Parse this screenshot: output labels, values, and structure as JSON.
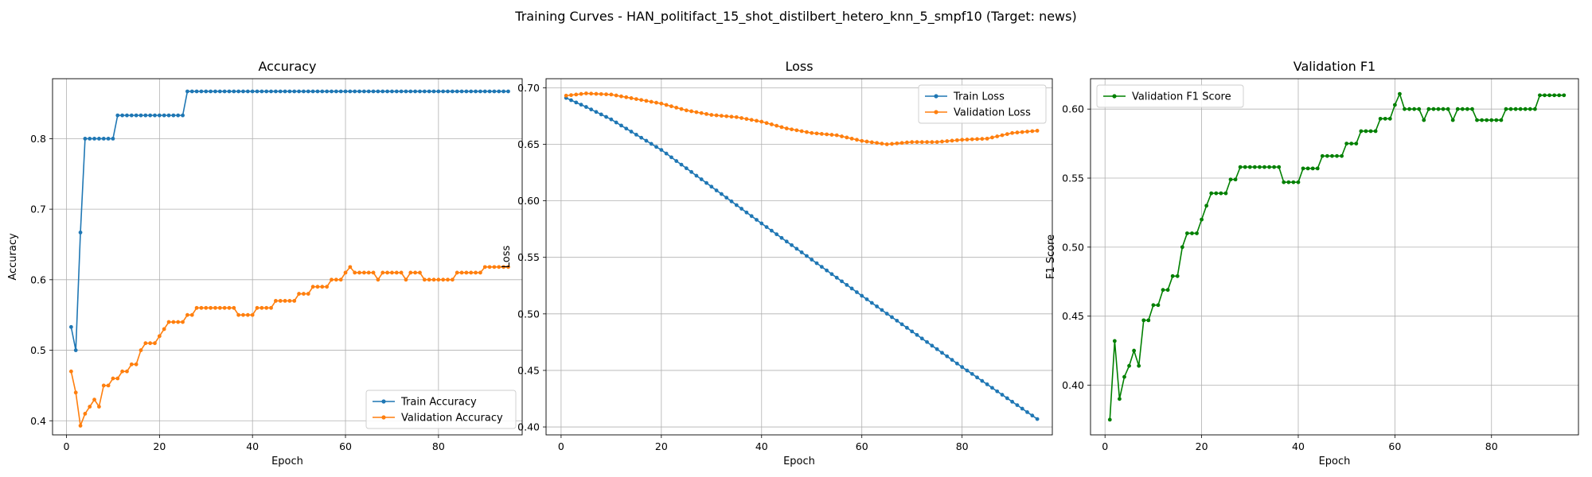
{
  "suptitle": "Training Curves - HAN_politifact_15_shot_distilbert_hetero_knn_5_smpf10 (Target: news)",
  "colors": {
    "blue": "#1f77b4",
    "orange": "#ff7f0e",
    "green": "#008000",
    "grid": "#b0b0b0"
  },
  "chart_data": [
    {
      "type": "line",
      "title": "Accuracy",
      "xlabel": "Epoch",
      "ylabel": "Accuracy",
      "xlim": [
        -3,
        98
      ],
      "ylim": [
        0.38,
        0.885
      ],
      "xticks": [
        0,
        20,
        40,
        60,
        80
      ],
      "yticks": [
        0.4,
        0.5,
        0.6,
        0.7,
        0.8
      ],
      "ytick_labels": [
        "0.4",
        "0.5",
        "0.6",
        "0.7",
        "0.8"
      ],
      "legend_loc": "lower-right",
      "grid": true,
      "series": [
        {
          "name": "Train Accuracy",
          "color": "#1f77b4",
          "segments": [
            [
              1,
              0.533
            ],
            [
              2,
              0.5
            ],
            [
              3,
              0.667
            ],
            [
              4,
              0.8,
              10
            ],
            [
              11,
              0.833,
              25
            ],
            [
              26,
              0.867,
              95
            ]
          ]
        },
        {
          "name": "Validation Accuracy",
          "color": "#ff7f0e",
          "segments": [
            [
              1,
              0.47
            ],
            [
              2,
              0.44
            ],
            [
              3,
              0.393
            ],
            [
              4,
              0.41
            ],
            [
              5,
              0.42
            ],
            [
              6,
              0.43
            ],
            [
              7,
              0.42
            ],
            [
              8,
              0.45,
              9
            ],
            [
              10,
              0.46,
              11
            ],
            [
              12,
              0.47,
              13
            ],
            [
              14,
              0.48,
              15
            ],
            [
              16,
              0.5
            ],
            [
              17,
              0.51,
              19
            ],
            [
              20,
              0.52
            ],
            [
              21,
              0.53
            ],
            [
              22,
              0.54,
              25
            ],
            [
              26,
              0.55,
              27
            ],
            [
              28,
              0.56,
              36
            ],
            [
              37,
              0.55,
              40
            ],
            [
              41,
              0.56,
              44
            ],
            [
              45,
              0.57,
              49
            ],
            [
              50,
              0.58,
              52
            ],
            [
              53,
              0.59,
              56
            ],
            [
              57,
              0.6,
              59
            ],
            [
              60,
              0.61
            ],
            [
              61,
              0.618
            ],
            [
              62,
              0.61,
              66
            ],
            [
              67,
              0.6
            ],
            [
              68,
              0.61,
              72
            ],
            [
              73,
              0.6
            ],
            [
              74,
              0.61,
              76
            ],
            [
              77,
              0.6,
              83
            ],
            [
              84,
              0.61,
              89
            ],
            [
              90,
              0.618,
              95
            ]
          ]
        }
      ]
    },
    {
      "type": "line",
      "title": "Loss",
      "xlabel": "Epoch",
      "ylabel": "Loss",
      "xlim": [
        -3,
        98
      ],
      "ylim": [
        0.393,
        0.708
      ],
      "xticks": [
        0,
        20,
        40,
        60,
        80
      ],
      "yticks": [
        0.4,
        0.45,
        0.5,
        0.55,
        0.6,
        0.65,
        0.7
      ],
      "ytick_labels": [
        "0.40",
        "0.45",
        "0.50",
        "0.55",
        "0.60",
        "0.65",
        "0.70"
      ],
      "legend_loc": "top-right",
      "grid": true,
      "series": [
        {
          "name": "Train Loss",
          "color": "#1f77b4",
          "knots": [
            [
              1,
              0.691
            ],
            [
              5,
              0.683
            ],
            [
              10,
              0.672
            ],
            [
              20,
              0.645
            ],
            [
              40,
              0.58
            ],
            [
              60,
              0.516
            ],
            [
              80,
              0.453
            ],
            [
              95,
              0.407
            ]
          ]
        },
        {
          "name": "Validation Loss",
          "color": "#ff7f0e",
          "knots": [
            [
              1,
              0.693
            ],
            [
              5,
              0.695
            ],
            [
              10,
              0.694
            ],
            [
              15,
              0.69
            ],
            [
              20,
              0.686
            ],
            [
              25,
              0.68
            ],
            [
              30,
              0.676
            ],
            [
              35,
              0.674
            ],
            [
              40,
              0.67
            ],
            [
              45,
              0.664
            ],
            [
              50,
              0.66
            ],
            [
              55,
              0.658
            ],
            [
              60,
              0.653
            ],
            [
              65,
              0.65
            ],
            [
              70,
              0.652
            ],
            [
              75,
              0.652
            ],
            [
              80,
              0.654
            ],
            [
              85,
              0.655
            ],
            [
              90,
              0.66
            ],
            [
              95,
              0.662
            ]
          ]
        }
      ]
    },
    {
      "type": "line",
      "title": "Validation F1",
      "xlabel": "Epoch",
      "ylabel": "F1 Score",
      "xlim": [
        -3,
        98
      ],
      "ylim": [
        0.364,
        0.622
      ],
      "xticks": [
        0,
        20,
        40,
        60,
        80
      ],
      "yticks": [
        0.4,
        0.45,
        0.5,
        0.55,
        0.6
      ],
      "ytick_labels": [
        "0.40",
        "0.45",
        "0.50",
        "0.55",
        "0.60"
      ],
      "legend_loc": "top-left",
      "grid": true,
      "series": [
        {
          "name": "Validation F1 Score",
          "color": "#008000",
          "segments": [
            [
              1,
              0.375
            ],
            [
              2,
              0.432
            ],
            [
              3,
              0.39
            ],
            [
              4,
              0.406
            ],
            [
              5,
              0.414
            ],
            [
              6,
              0.425
            ],
            [
              7,
              0.414
            ],
            [
              8,
              0.447,
              9
            ],
            [
              10,
              0.458,
              11
            ],
            [
              12,
              0.469,
              13
            ],
            [
              14,
              0.479,
              15
            ],
            [
              16,
              0.5
            ],
            [
              17,
              0.51,
              19
            ],
            [
              20,
              0.52
            ],
            [
              21,
              0.53
            ],
            [
              22,
              0.539,
              25
            ],
            [
              26,
              0.549,
              27
            ],
            [
              28,
              0.558,
              36
            ],
            [
              37,
              0.547,
              40
            ],
            [
              41,
              0.557,
              44
            ],
            [
              45,
              0.566,
              49
            ],
            [
              50,
              0.575,
              52
            ],
            [
              53,
              0.584,
              56
            ],
            [
              57,
              0.593,
              59
            ],
            [
              60,
              0.603
            ],
            [
              61,
              0.611
            ],
            [
              62,
              0.6,
              65
            ],
            [
              66,
              0.592
            ],
            [
              67,
              0.6,
              71
            ],
            [
              72,
              0.592
            ],
            [
              73,
              0.6,
              76
            ],
            [
              77,
              0.592,
              82
            ],
            [
              83,
              0.6,
              89
            ],
            [
              90,
              0.61,
              95
            ]
          ]
        }
      ]
    }
  ]
}
